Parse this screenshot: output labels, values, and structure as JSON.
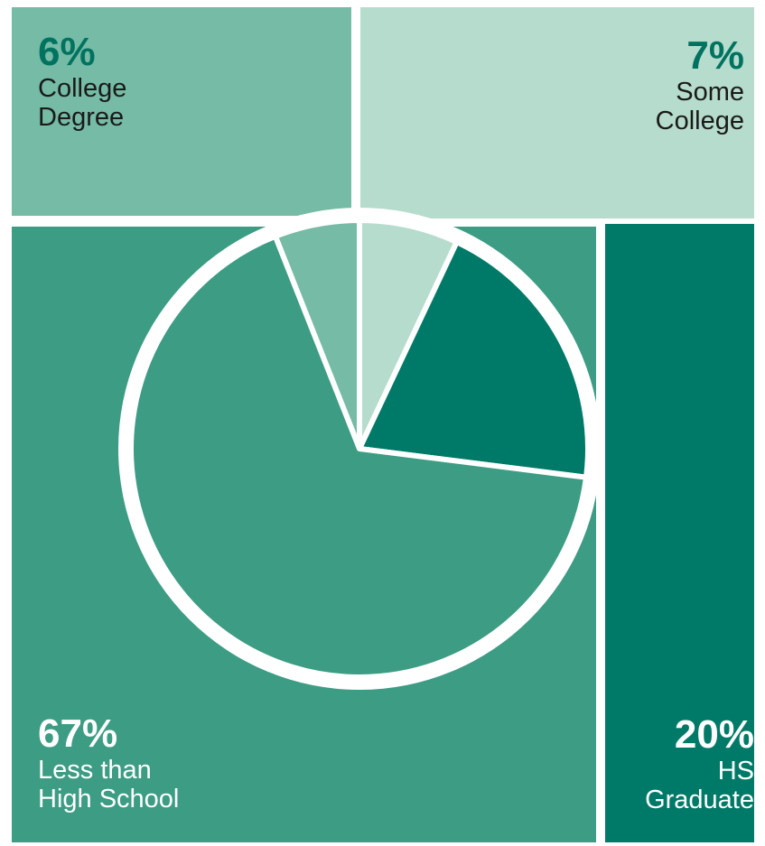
{
  "chart_data": {
    "type": "pie",
    "title": "",
    "slices": [
      {
        "key": "college",
        "label_lines": [
          "College",
          "Degree"
        ],
        "value": 6,
        "value_label": "6%",
        "color": "#75BBA5"
      },
      {
        "key": "some_college",
        "label_lines": [
          "Some",
          "College"
        ],
        "value": 7,
        "value_label": "7%",
        "color": "#B6DCCD"
      },
      {
        "key": "hs",
        "label_lines": [
          "HS",
          "Graduate"
        ],
        "value": 20,
        "value_label": "20%",
        "color": "#007A68"
      },
      {
        "key": "less_hs",
        "label_lines": [
          "Less than",
          "High School"
        ],
        "value": 67,
        "value_label": "67%",
        "color": "#3C9C84"
      }
    ],
    "legend": "corner blocks",
    "colors": {
      "percent_text_dark": "#007360",
      "text_dark": "#1a1a1a",
      "text_light": "#ffffff",
      "separator": "#ffffff"
    }
  }
}
